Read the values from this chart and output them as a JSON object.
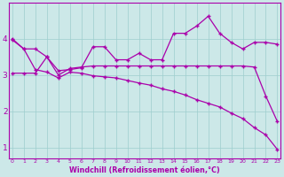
{
  "line1_x": [
    0,
    1,
    2,
    3,
    4,
    5,
    6,
    7,
    8,
    9,
    10,
    11,
    12,
    13,
    14,
    15,
    16,
    17,
    18,
    19,
    20,
    21,
    22,
    23
  ],
  "line1_y": [
    3.97,
    3.72,
    3.72,
    3.5,
    3.12,
    3.15,
    3.2,
    3.78,
    3.78,
    3.42,
    3.42,
    3.6,
    3.42,
    3.42,
    4.15,
    4.15,
    4.35,
    4.62,
    4.15,
    3.9,
    3.72,
    3.9,
    3.9,
    3.85
  ],
  "line2_x": [
    0,
    1,
    2,
    3,
    4,
    5,
    6,
    7,
    8,
    9,
    10,
    11,
    12,
    13,
    14,
    15,
    16,
    17,
    18,
    19,
    20,
    21,
    22,
    23
  ],
  "line2_y": [
    3.05,
    3.05,
    3.05,
    3.5,
    3.0,
    3.18,
    3.22,
    3.25,
    3.25,
    3.25,
    3.25,
    3.25,
    3.25,
    3.25,
    3.25,
    3.25,
    3.25,
    3.25,
    3.25,
    3.25,
    3.25,
    3.22,
    2.42,
    1.72
  ],
  "line3_x": [
    0,
    1,
    2,
    3,
    4,
    5,
    6,
    7,
    8,
    9,
    10,
    11,
    12,
    13,
    14,
    15,
    16,
    17,
    18,
    19,
    20,
    21,
    22,
    23
  ],
  "line3_y": [
    4.0,
    3.72,
    3.15,
    3.08,
    2.92,
    3.08,
    3.05,
    2.98,
    2.95,
    2.92,
    2.85,
    2.78,
    2.72,
    2.62,
    2.55,
    2.45,
    2.32,
    2.22,
    2.12,
    1.95,
    1.8,
    1.55,
    1.35,
    0.95
  ],
  "line_color": "#aa00aa",
  "bg_color": "#cce8e8",
  "grid_color": "#9dcece",
  "xlabel": "Windchill (Refroidissement éolien,°C)",
  "xlabel_color": "#aa00aa",
  "xticks": [
    0,
    1,
    2,
    3,
    4,
    5,
    6,
    7,
    8,
    9,
    10,
    11,
    12,
    13,
    14,
    15,
    16,
    17,
    18,
    19,
    20,
    21,
    22,
    23
  ],
  "yticks": [
    1,
    2,
    3,
    4
  ],
  "ylim": [
    0.7,
    5.0
  ],
  "xlim": [
    -0.3,
    23.3
  ],
  "marker": "+"
}
